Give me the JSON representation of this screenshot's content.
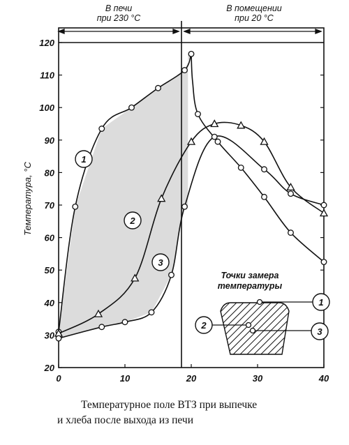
{
  "chart_data": {
    "type": "line",
    "title": "",
    "ylabel": "Температура, °C",
    "xlabel": "",
    "xlim": [
      0,
      40
    ],
    "ylim": [
      20,
      120
    ],
    "x_ticks": [
      0,
      10,
      20,
      30,
      40
    ],
    "y_ticks": [
      20,
      30,
      40,
      50,
      60,
      70,
      80,
      90,
      100,
      110,
      120
    ],
    "grid": false,
    "zones": [
      {
        "label_line1": "В печи",
        "label_line2": "при 230 °C",
        "x_range": [
          0,
          19.5
        ]
      },
      {
        "label_line1": "В помещении",
        "label_line2": "при 20 °C",
        "x_range": [
          19.5,
          40
        ]
      }
    ],
    "series": [
      {
        "name": "1",
        "marker": "circle",
        "x": [
          0,
          2.5,
          6.5,
          11,
          15,
          19,
          20,
          20.2,
          21,
          24,
          27.5,
          31,
          35,
          40
        ],
        "y": [
          31,
          69.5,
          93.5,
          100,
          106,
          111.5,
          116.5,
          108,
          98,
          89.5,
          81.5,
          72.5,
          61.5,
          52.5
        ]
      },
      {
        "name": "2",
        "marker": "triangle",
        "x": [
          0,
          6,
          11.5,
          15.5,
          20,
          23.5,
          27.5,
          31,
          35,
          40
        ],
        "y": [
          30.5,
          36.5,
          47.5,
          72,
          89.5,
          95,
          94.5,
          89.5,
          75.5,
          67.5
        ]
      },
      {
        "name": "3",
        "marker": "circle",
        "x": [
          0,
          6.5,
          10,
          14,
          17,
          19,
          23.5,
          31,
          35,
          40
        ],
        "y": [
          29,
          32.5,
          34,
          37,
          48.5,
          69.5,
          91,
          81,
          73.5,
          70
        ]
      }
    ],
    "inset": {
      "title_line1": "Точки замера",
      "title_line2": "температуры",
      "markers": [
        "1",
        "2",
        "3"
      ]
    }
  },
  "caption": {
    "line1": "Температурное поле ВТЗ при выпечке",
    "line2": "и хлеба после выхода из печи"
  }
}
